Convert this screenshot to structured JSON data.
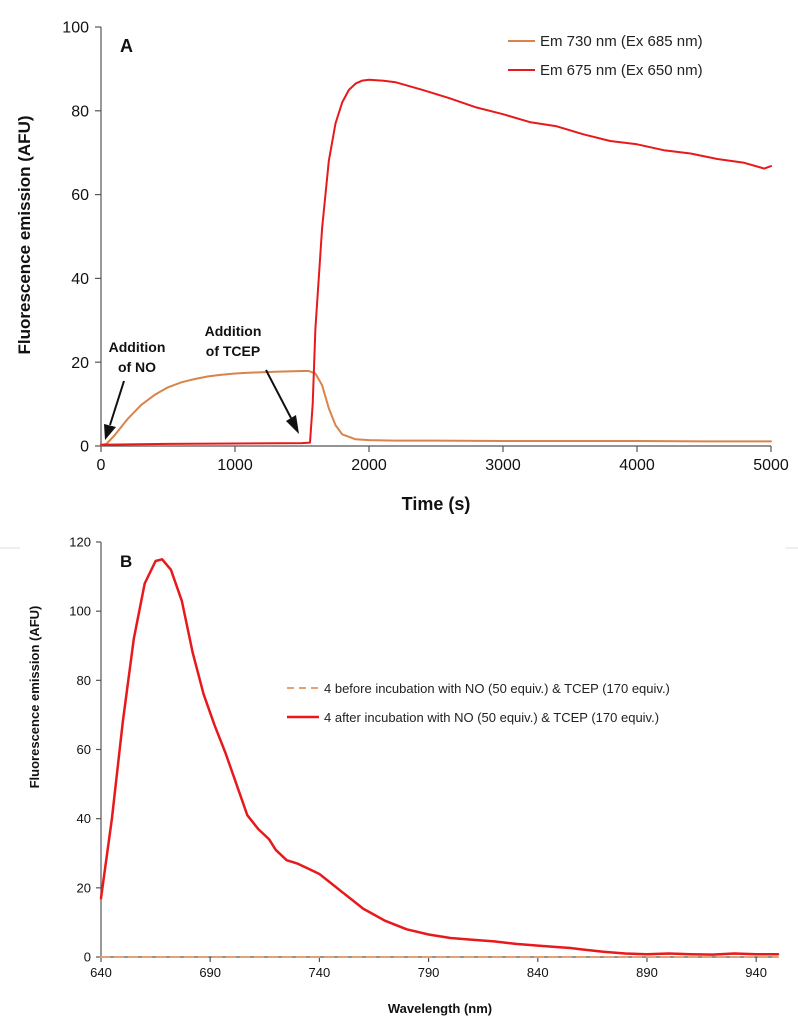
{
  "chart_data": [
    {
      "panel_label": "A",
      "type": "line",
      "xlabel": "Time (s)",
      "ylabel": "Fluorescence emission (AFU)",
      "xlim": [
        0,
        5000
      ],
      "ylim": [
        0,
        100
      ],
      "x_ticks": [
        0,
        1000,
        2000,
        3000,
        4000,
        5000
      ],
      "y_ticks": [
        0,
        20,
        40,
        60,
        80,
        100
      ],
      "grid": false,
      "legend_position": "top-right",
      "annotations": [
        {
          "lines": [
            "Addition",
            "of NO"
          ],
          "points_to": [
            30,
            0.5
          ]
        },
        {
          "lines": [
            "Addition",
            "of TCEP"
          ],
          "points_to": [
            1500,
            2
          ]
        }
      ],
      "series": [
        {
          "name": "Em 730 nm (Ex 685 nm)",
          "color": "#d8844a",
          "dash": "solid",
          "x": [
            0,
            40,
            100,
            200,
            300,
            400,
            500,
            600,
            700,
            800,
            900,
            1000,
            1100,
            1200,
            1300,
            1400,
            1500,
            1550,
            1600,
            1650,
            1700,
            1750,
            1800,
            1900,
            2000,
            2200,
            2500,
            3000,
            3500,
            4000,
            4500,
            5000
          ],
          "y": [
            0.2,
            0.5,
            2.5,
            6.5,
            9.8,
            12.2,
            14.0,
            15.2,
            16.0,
            16.6,
            17.0,
            17.3,
            17.5,
            17.6,
            17.7,
            17.8,
            17.9,
            17.9,
            17.3,
            14.5,
            9.0,
            5.0,
            2.8,
            1.6,
            1.4,
            1.3,
            1.3,
            1.2,
            1.2,
            1.2,
            1.1,
            1.1
          ]
        },
        {
          "name": "Em 675 nm (Ex 650 nm)",
          "color": "#e8191c",
          "dash": "solid",
          "x": [
            0,
            500,
            1000,
            1500,
            1560,
            1580,
            1600,
            1650,
            1700,
            1750,
            1800,
            1850,
            1900,
            1950,
            2000,
            2100,
            2200,
            2400,
            2600,
            2800,
            3000,
            3200,
            3400,
            3600,
            3800,
            4000,
            4200,
            4400,
            4600,
            4800,
            4950,
            5000
          ],
          "y": [
            0.3,
            0.5,
            0.6,
            0.7,
            0.8,
            10,
            28,
            52,
            68,
            77,
            82,
            85,
            86.5,
            87.2,
            87.4,
            87.2,
            86.8,
            85.0,
            83.0,
            80.8,
            79.2,
            77.3,
            76.3,
            74.4,
            72.8,
            72.0,
            70.6,
            69.8,
            68.5,
            67.6,
            66.2,
            66.8
          ]
        }
      ]
    },
    {
      "panel_label": "B",
      "type": "line",
      "xlabel": "Wavelength (nm)",
      "ylabel": "Fluorescence emission (AFU)",
      "xlim": [
        640,
        950
      ],
      "ylim": [
        0,
        120
      ],
      "x_ticks": [
        640,
        690,
        740,
        790,
        840,
        890,
        940
      ],
      "y_ticks": [
        0,
        20,
        40,
        60,
        80,
        100,
        120
      ],
      "grid": false,
      "legend_position": "center-right",
      "series": [
        {
          "name": "4 before incubation with NO (50 equiv.) & TCEP (170 equiv.)",
          "color": "#e8a070",
          "dash": "dashed",
          "x": [
            640,
            700,
            760,
            820,
            880,
            950
          ],
          "y": [
            0,
            0,
            0,
            0,
            0,
            0
          ]
        },
        {
          "name": "4 after incubation with NO (50 equiv.) & TCEP (170 equiv.)",
          "color": "#e8191c",
          "dash": "solid",
          "x": [
            640,
            645,
            650,
            655,
            660,
            665,
            668,
            672,
            677,
            682,
            687,
            692,
            697,
            702,
            707,
            712,
            717,
            720,
            725,
            730,
            735,
            740,
            745,
            750,
            755,
            760,
            770,
            780,
            790,
            800,
            810,
            820,
            830,
            840,
            850,
            855,
            860,
            870,
            880,
            890,
            900,
            910,
            920,
            930,
            940,
            950
          ],
          "y": [
            17,
            40,
            68,
            92,
            108,
            114.5,
            115,
            112,
            103,
            88,
            76,
            67,
            59,
            50,
            41,
            37,
            34,
            31,
            28,
            27,
            25.5,
            24,
            21.5,
            19,
            16.5,
            14,
            10.5,
            8,
            6.5,
            5.5,
            5,
            4.5,
            3.8,
            3.3,
            2.8,
            2.6,
            2.2,
            1.5,
            1.0,
            0.8,
            1.0,
            0.8,
            0.7,
            1.0,
            0.8,
            0.8
          ]
        }
      ]
    }
  ]
}
